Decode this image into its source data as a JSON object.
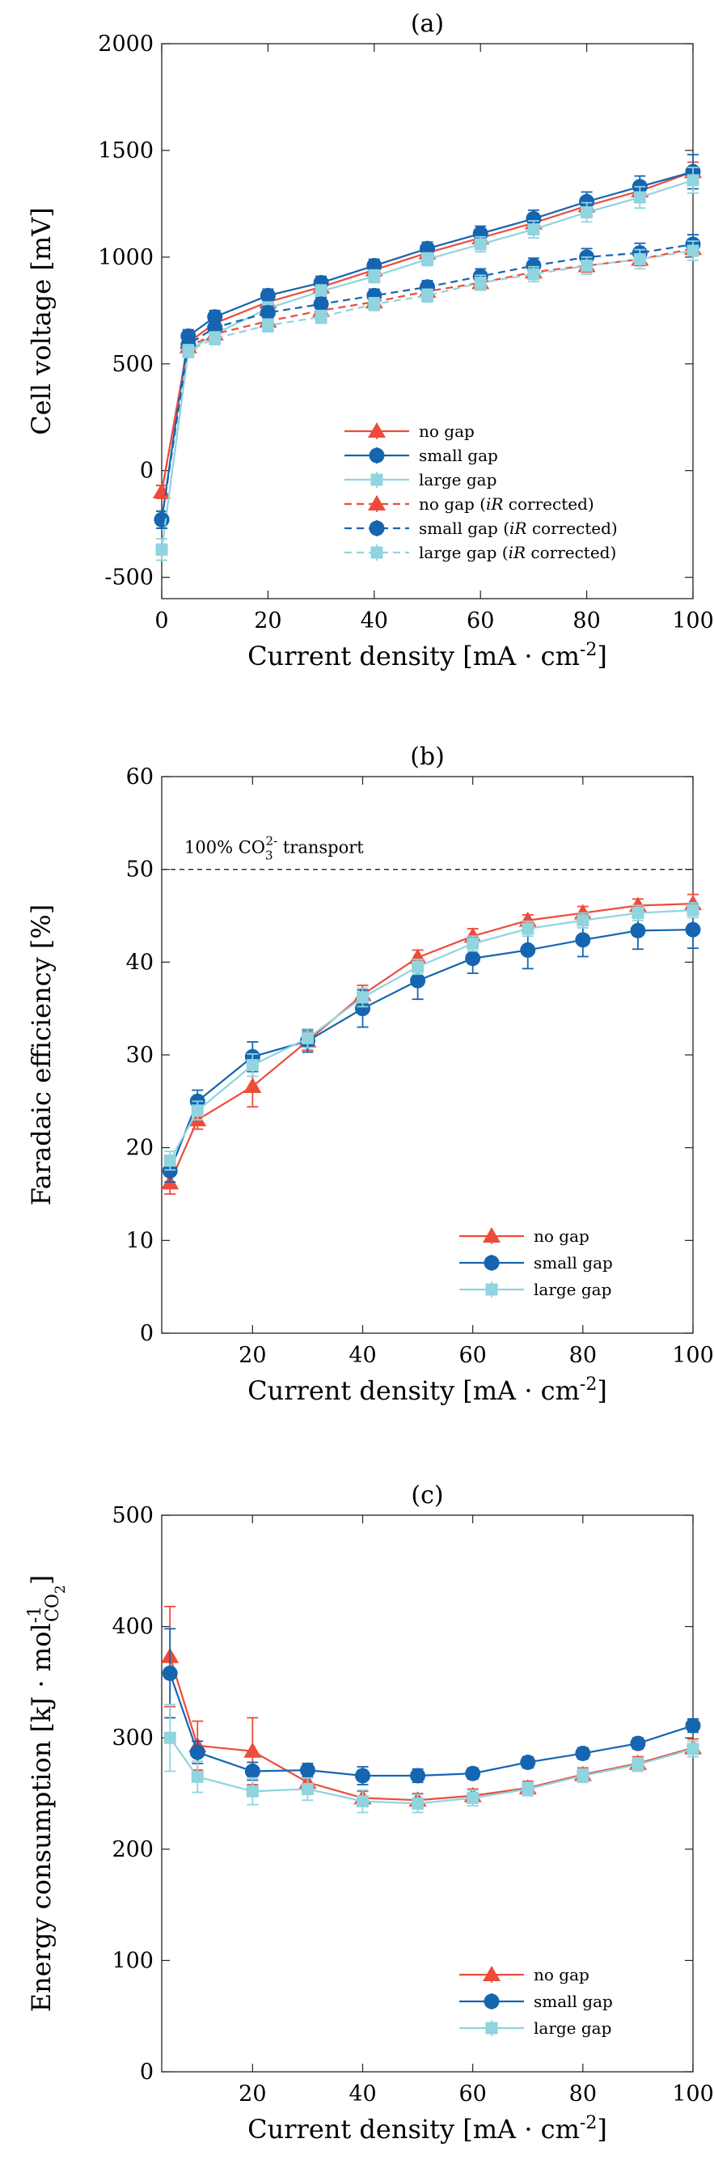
{
  "chart_data": [
    {
      "panel": "(a)",
      "type": "line",
      "title": "(a)",
      "xlabel": "Current density [mA · cm",
      "xlabel_sup": "-2",
      "xlabel_end": "]",
      "ylabel": "Cell voltage [mV]",
      "xlim": [
        0,
        100
      ],
      "ylim": [
        -600,
        2000
      ],
      "xticks": [
        0,
        20,
        40,
        60,
        80,
        100
      ],
      "yticks": [
        -500,
        0,
        500,
        1000,
        1500,
        2000
      ],
      "ytick_labels": [
        "-500",
        "0",
        "500",
        "1000",
        "1500",
        "2000"
      ],
      "legend_position": "lower-right",
      "x": [
        0,
        5,
        10,
        20,
        30,
        40,
        50,
        60,
        70,
        80,
        90,
        100
      ],
      "series": [
        {
          "name": "no gap",
          "color": "#ee4b3a",
          "marker": "triangle",
          "dash": false,
          "values": [
            -100,
            600,
            690,
            790,
            860,
            940,
            1020,
            1090,
            1160,
            1240,
            1310,
            1400
          ],
          "errors": [
            30,
            25,
            25,
            25,
            25,
            25,
            25,
            30,
            30,
            35,
            40,
            45
          ]
        },
        {
          "name": "small gap",
          "color": "#1565b0",
          "marker": "circle",
          "dash": false,
          "values": [
            -230,
            630,
            720,
            820,
            880,
            960,
            1040,
            1110,
            1180,
            1260,
            1330,
            1400
          ],
          "errors": [
            40,
            30,
            30,
            30,
            30,
            30,
            30,
            35,
            40,
            45,
            50,
            80
          ]
        },
        {
          "name": "large gap",
          "color": "#8fd4df",
          "marker": "square",
          "dash": false,
          "values": [
            -370,
            560,
            640,
            760,
            840,
            910,
            990,
            1060,
            1130,
            1210,
            1280,
            1360
          ],
          "errors": [
            50,
            30,
            30,
            30,
            30,
            30,
            30,
            35,
            40,
            45,
            50,
            60
          ]
        },
        {
          "name_pre": "no gap (",
          "name_em": "iR",
          "name_post": " corrected)",
          "color": "#ee4b3a",
          "marker": "triangle",
          "dash": true,
          "values": [
            -100,
            580,
            640,
            700,
            750,
            790,
            840,
            880,
            930,
            960,
            990,
            1040
          ],
          "errors": [
            30,
            25,
            25,
            25,
            25,
            25,
            25,
            25,
            25,
            30,
            30,
            35
          ]
        },
        {
          "name_pre": "small gap (",
          "name_em": "iR",
          "name_post": " corrected)",
          "color": "#1565b0",
          "marker": "circle",
          "dash": true,
          "values": [
            -230,
            590,
            670,
            740,
            780,
            820,
            860,
            910,
            960,
            1000,
            1020,
            1060
          ],
          "errors": [
            40,
            30,
            30,
            30,
            30,
            30,
            30,
            35,
            35,
            40,
            45,
            45
          ]
        },
        {
          "name_pre": "large gap (",
          "name_em": "iR",
          "name_post": " corrected)",
          "color": "#8fd4df",
          "marker": "square",
          "dash": true,
          "values": [
            -370,
            560,
            620,
            680,
            720,
            780,
            820,
            880,
            920,
            960,
            990,
            1030
          ],
          "errors": [
            50,
            30,
            30,
            30,
            30,
            30,
            30,
            35,
            35,
            40,
            45,
            45
          ]
        }
      ]
    },
    {
      "panel": "(b)",
      "type": "line",
      "title": "(b)",
      "xlabel": "Current density [mA · cm",
      "xlabel_sup": "-2",
      "xlabel_end": "]",
      "ylabel": "Faradaic efficiency [%]",
      "xlim": [
        3.5,
        100
      ],
      "ylim": [
        0,
        60
      ],
      "xticks": [
        20,
        40,
        60,
        80,
        100
      ],
      "yticks": [
        0,
        10,
        20,
        30,
        40,
        50,
        60
      ],
      "ytick_labels": [
        "0",
        "10",
        "20",
        "30",
        "40",
        "50",
        "60"
      ],
      "legend_position": "lower-right",
      "annotation": {
        "pre": "100% CO",
        "sub": "3",
        "sup": "2-",
        "post": " transport",
        "y": 50
      },
      "x": [
        5,
        10,
        20,
        30,
        40,
        50,
        60,
        70,
        80,
        90,
        100
      ],
      "series": [
        {
          "name": "no gap",
          "color": "#ee4b3a",
          "marker": "triangle",
          "values": [
            16.2,
            23.0,
            26.6,
            31.5,
            36.5,
            40.5,
            42.8,
            44.5,
            45.3,
            46.1,
            46.3
          ],
          "errors": [
            1.2,
            1.0,
            2.2,
            1.0,
            1.0,
            0.8,
            0.8,
            0.6,
            0.7,
            0.7,
            1.0
          ]
        },
        {
          "name": "small gap",
          "color": "#1565b0",
          "marker": "circle",
          "values": [
            17.5,
            25.0,
            29.8,
            31.5,
            35.0,
            38.0,
            40.4,
            41.3,
            42.4,
            43.4,
            43.5
          ],
          "errors": [
            1.2,
            1.2,
            1.6,
            1.2,
            2.0,
            2.0,
            1.6,
            2.0,
            1.8,
            2.0,
            2.0
          ]
        },
        {
          "name": "large gap",
          "color": "#8fd4df",
          "marker": "square",
          "values": [
            18.6,
            24.0,
            28.9,
            31.8,
            36.2,
            39.5,
            42.0,
            43.6,
            44.5,
            45.3,
            45.6
          ],
          "errors": [
            1.0,
            1.0,
            1.2,
            1.0,
            1.0,
            0.8,
            0.8,
            0.8,
            0.8,
            0.8,
            0.8
          ]
        }
      ]
    },
    {
      "panel": "(c)",
      "type": "line",
      "title": "(c)",
      "xlabel": "Current density [mA · cm",
      "xlabel_sup": "-2",
      "xlabel_end": "]",
      "ylabel": "Energy consumption [kJ · mol",
      "ylabel_sup": "-1",
      "ylabel_sub": "CO",
      "ylabel_subsub": "2",
      "ylabel_end": "]",
      "xlim": [
        3.5,
        100
      ],
      "ylim": [
        0,
        500
      ],
      "xticks": [
        20,
        40,
        60,
        80,
        100
      ],
      "yticks": [
        0,
        100,
        200,
        300,
        400,
        500
      ],
      "ytick_labels": [
        "0",
        "100",
        "200",
        "300",
        "400",
        "500"
      ],
      "legend_position": "lower-right",
      "x": [
        5,
        10,
        20,
        30,
        40,
        50,
        60,
        70,
        80,
        90,
        100
      ],
      "series": [
        {
          "name": "no gap",
          "color": "#ee4b3a",
          "marker": "triangle",
          "values": [
            373,
            293,
            288,
            260,
            246,
            244,
            248,
            255,
            267,
            277,
            291
          ],
          "errors": [
            45,
            22,
            30,
            8,
            6,
            6,
            6,
            6,
            6,
            6,
            8
          ]
        },
        {
          "name": "small gap",
          "color": "#1565b0",
          "marker": "circle",
          "values": [
            358,
            287,
            270,
            271,
            266,
            266,
            268,
            278,
            286,
            295,
            311
          ],
          "errors": [
            40,
            10,
            8,
            6,
            8,
            6,
            5,
            5,
            5,
            5,
            6
          ]
        },
        {
          "name": "large gap",
          "color": "#8fd4df",
          "marker": "square",
          "values": [
            300,
            265,
            252,
            254,
            243,
            241,
            246,
            254,
            266,
            276,
            290
          ],
          "errors": [
            30,
            14,
            12,
            10,
            10,
            8,
            7,
            6,
            6,
            6,
            7
          ]
        }
      ]
    }
  ]
}
